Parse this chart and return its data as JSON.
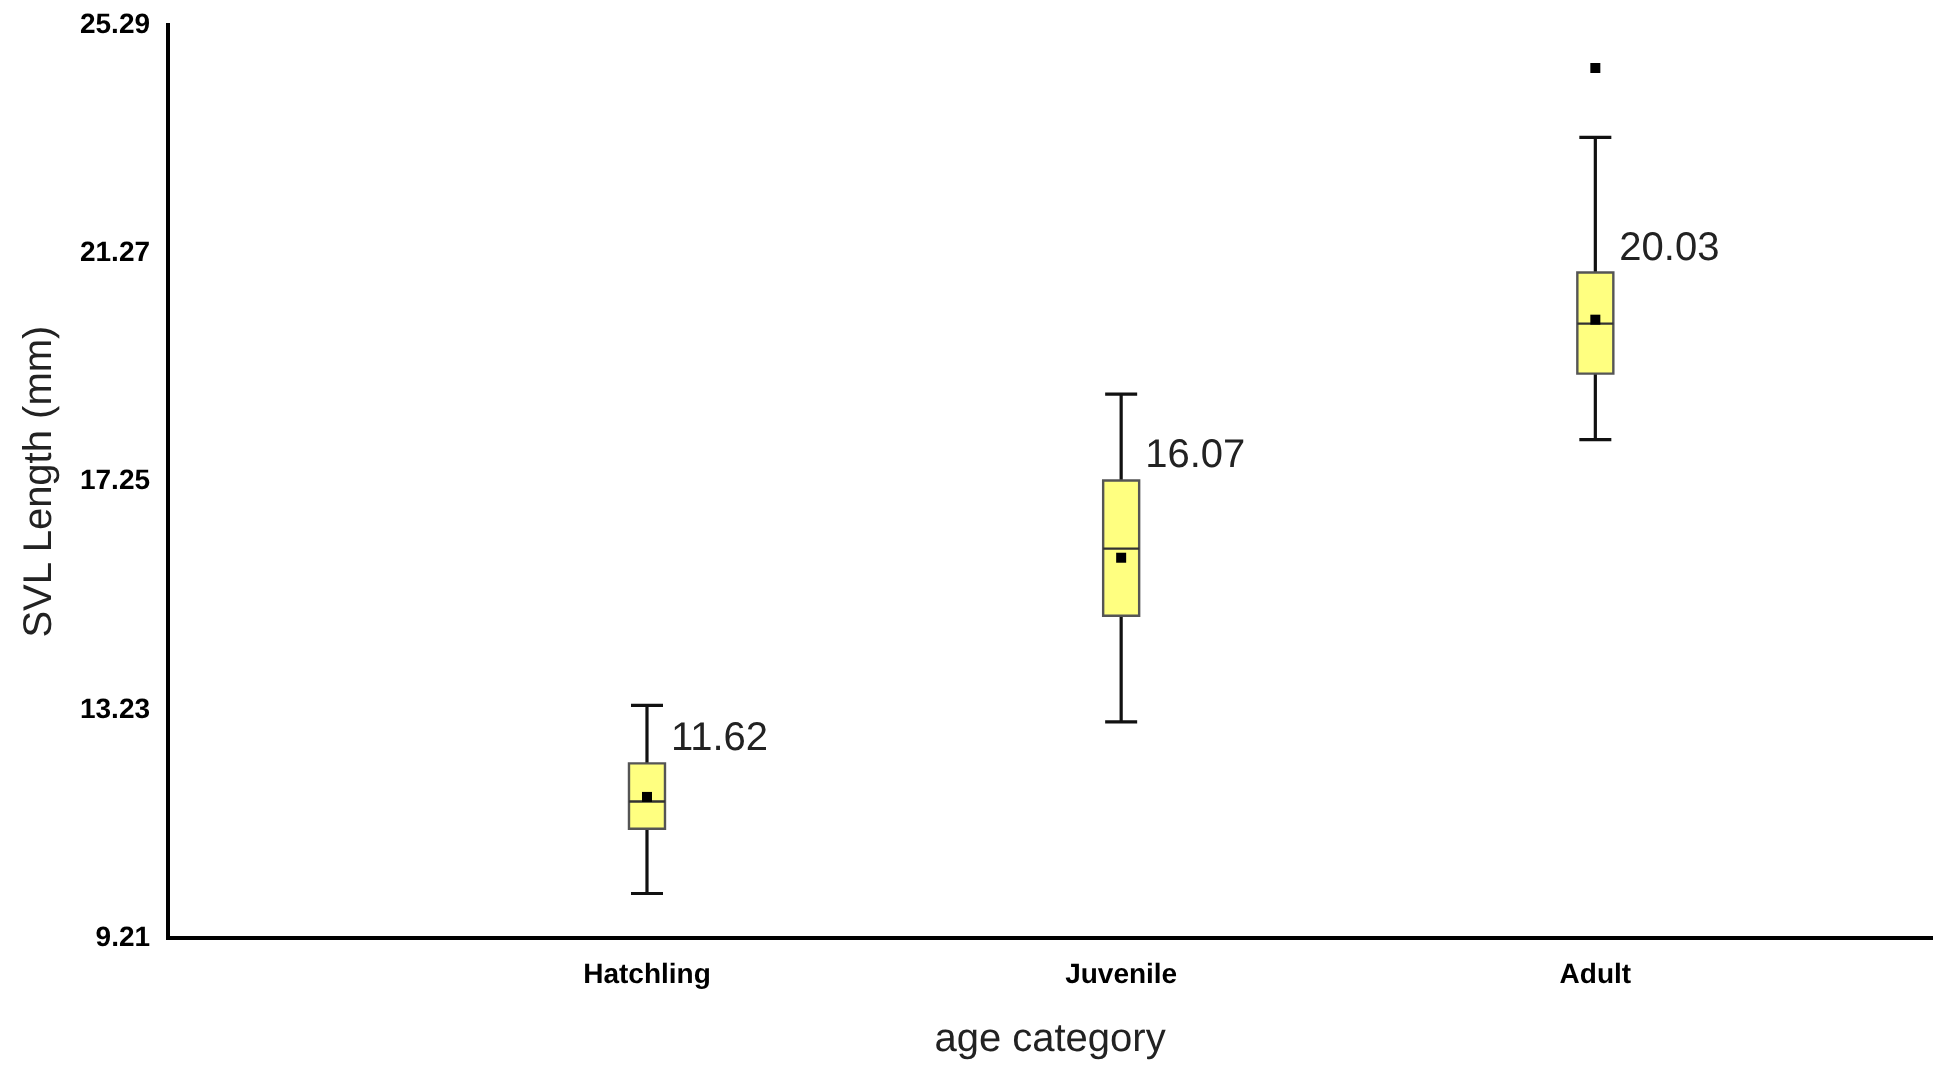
{
  "chart_data": {
    "type": "box",
    "xlabel": "age category",
    "ylabel": "SVL Length (mm)",
    "categories": [
      "Hatchling",
      "Juvenile",
      "Adult"
    ],
    "color": "#ffff80",
    "boxes": [
      {
        "low": 10.0,
        "q1": 11.14,
        "median": 11.62,
        "q3": 12.29,
        "high": 13.31,
        "mean": 11.7
      },
      {
        "low": 13.02,
        "q1": 14.89,
        "median": 16.07,
        "q3": 17.27,
        "high": 18.79,
        "mean": 15.91
      },
      {
        "low": 17.99,
        "q1": 19.15,
        "median": 20.03,
        "q3": 20.93,
        "high": 23.31,
        "mean": 20.1,
        "outliers": [
          24.53
        ]
      }
    ],
    "annotations": [
      {
        "text": "11.62",
        "x": "Hatchling",
        "y": 11.62
      },
      {
        "text": "16.07",
        "x": "Juvenile",
        "y": 16.07
      },
      {
        "text": "20.03",
        "x": "Adult",
        "y": 20.03
      }
    ],
    "ylim": [
      9.21,
      25.29
    ],
    "yticks": [
      9.21,
      13.23,
      17.25,
      21.27,
      25.29
    ],
    "grid": false,
    "legend": false
  }
}
